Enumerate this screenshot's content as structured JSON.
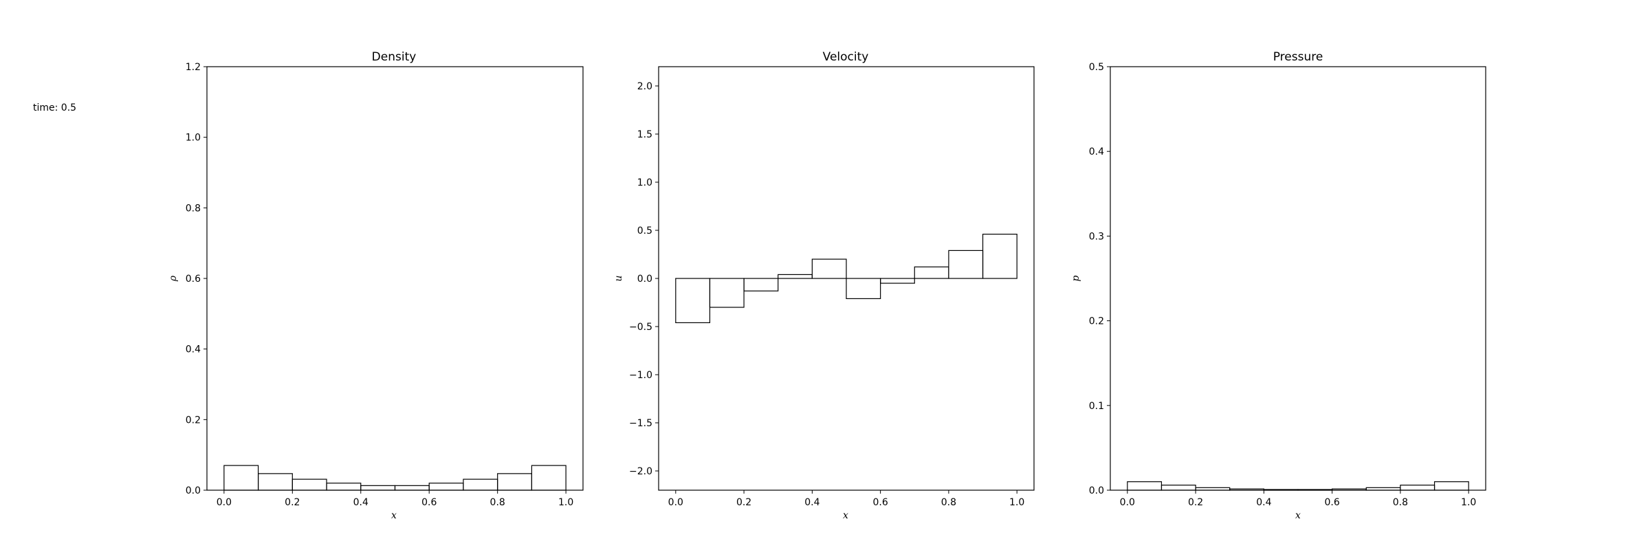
{
  "time_text": "time: 0.5",
  "chart_data": [
    {
      "type": "bar",
      "title": "Density",
      "xlabel": "x",
      "ylabel": "ρ",
      "xlim": [
        -0.05,
        1.05
      ],
      "ylim": [
        0,
        1.2
      ],
      "xticks": [
        0.0,
        0.2,
        0.4,
        0.6,
        0.8,
        1.0
      ],
      "xtick_labels": [
        "0.0",
        "0.2",
        "0.4",
        "0.6",
        "0.8",
        "1.0"
      ],
      "yticks": [
        0.0,
        0.2,
        0.4,
        0.6,
        0.8,
        1.0,
        1.2
      ],
      "ytick_labels": [
        "0.0",
        "0.2",
        "0.4",
        "0.6",
        "0.8",
        "1.0",
        "1.2"
      ],
      "bin_edges": [
        0.0,
        0.1,
        0.2,
        0.3,
        0.4,
        0.5,
        0.6,
        0.7,
        0.8,
        0.9,
        1.0
      ],
      "values": [
        0.07,
        0.047,
        0.031,
        0.02,
        0.013,
        0.013,
        0.02,
        0.031,
        0.047,
        0.07
      ]
    },
    {
      "type": "bar",
      "title": "Velocity",
      "xlabel": "x",
      "ylabel": "u",
      "xlim": [
        -0.05,
        1.05
      ],
      "ylim": [
        -2.2,
        2.2
      ],
      "xticks": [
        0.0,
        0.2,
        0.4,
        0.6,
        0.8,
        1.0
      ],
      "xtick_labels": [
        "0.0",
        "0.2",
        "0.4",
        "0.6",
        "0.8",
        "1.0"
      ],
      "yticks": [
        -2.0,
        -1.5,
        -1.0,
        -0.5,
        0.0,
        0.5,
        1.0,
        1.5,
        2.0
      ],
      "ytick_labels": [
        "−2.0",
        "−1.5",
        "−1.0",
        "−0.5",
        "0.0",
        "0.5",
        "1.0",
        "1.5",
        "2.0"
      ],
      "bin_edges": [
        0.0,
        0.1,
        0.2,
        0.3,
        0.4,
        0.5,
        0.6,
        0.7,
        0.8,
        0.9,
        1.0
      ],
      "values": [
        -0.46,
        -0.3,
        -0.13,
        0.04,
        0.2,
        -0.21,
        -0.05,
        0.12,
        0.29,
        0.46
      ]
    },
    {
      "type": "bar",
      "title": "Pressure",
      "xlabel": "x",
      "ylabel": "p",
      "xlim": [
        -0.05,
        1.05
      ],
      "ylim": [
        0,
        0.5
      ],
      "xticks": [
        0.0,
        0.2,
        0.4,
        0.6,
        0.8,
        1.0
      ],
      "xtick_labels": [
        "0.0",
        "0.2",
        "0.4",
        "0.6",
        "0.8",
        "1.0"
      ],
      "yticks": [
        0.0,
        0.1,
        0.2,
        0.3,
        0.4,
        0.5
      ],
      "ytick_labels": [
        "0.0",
        "0.1",
        "0.2",
        "0.3",
        "0.4",
        "0.5"
      ],
      "bin_edges": [
        0.0,
        0.1,
        0.2,
        0.3,
        0.4,
        0.5,
        0.6,
        0.7,
        0.8,
        0.9,
        1.0
      ],
      "values": [
        0.01,
        0.006,
        0.003,
        0.0015,
        0.0008,
        0.0008,
        0.0015,
        0.003,
        0.006,
        0.01
      ]
    }
  ]
}
